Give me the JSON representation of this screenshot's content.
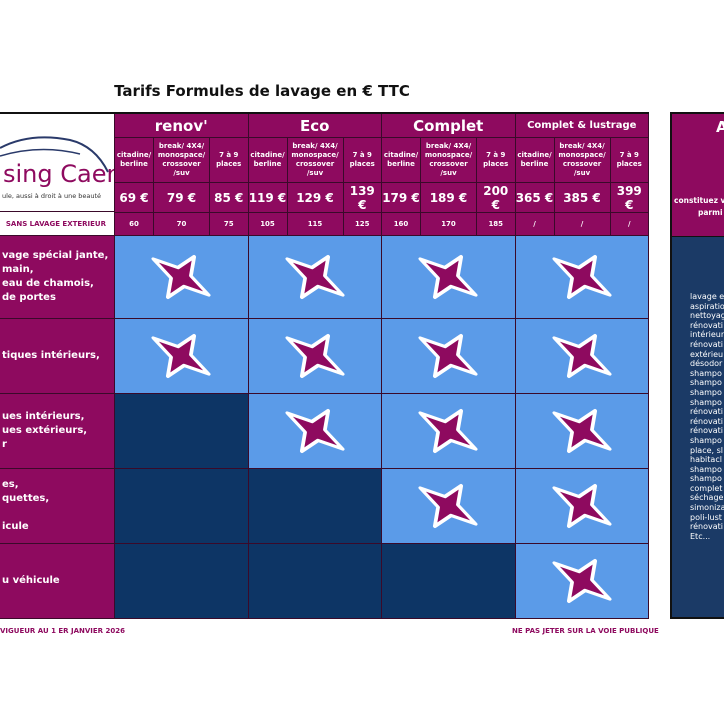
{
  "title": "Tarifs Formules de lavage en € TTC",
  "logo": {
    "name": "sing Caen",
    "tagline": "ule, aussi à droit à une beauté",
    "note": "SANS LAVAGE EXTERIEUR"
  },
  "formulas": [
    {
      "name": "renov'",
      "prices": [
        "69 €",
        "79 €",
        "85 €"
      ],
      "no_ext": [
        "60",
        "70",
        "75"
      ]
    },
    {
      "name": "Eco",
      "prices": [
        "119 €",
        "129 €",
        "139 €"
      ],
      "no_ext": [
        "105",
        "115",
        "125"
      ]
    },
    {
      "name": "Complet",
      "prices": [
        "179 €",
        "189 €",
        "200 €"
      ],
      "no_ext": [
        "160",
        "170",
        "185"
      ]
    },
    {
      "name": "Complet & lustrage",
      "prices": [
        "365 €",
        "385 €",
        "399 €"
      ],
      "no_ext": [
        "/",
        "/",
        "/"
      ]
    }
  ],
  "vehicle_types": [
    [
      "citadine/",
      "berline"
    ],
    [
      "break/ 4X4/",
      "monospace/",
      "crossover /suv"
    ],
    [
      "7 à 9",
      "places"
    ]
  ],
  "rows": [
    {
      "lines": [
        "vage spécial jante,",
        "main,",
        "eau de chamois,",
        "de portes"
      ],
      "included": [
        true,
        true,
        true,
        true
      ]
    },
    {
      "lines": [
        "tiques intérieurs,"
      ],
      "included": [
        true,
        true,
        true,
        true
      ]
    },
    {
      "lines": [
        "ues intérieurs,",
        "ues extérieurs,",
        "r"
      ],
      "included": [
        false,
        true,
        true,
        true
      ]
    },
    {
      "lines": [
        "es,",
        "quettes,",
        "",
        "icule"
      ],
      "included": [
        false,
        false,
        true,
        true
      ]
    },
    {
      "lines": [
        "u véhicule"
      ],
      "included": [
        false,
        false,
        false,
        true
      ]
    }
  ],
  "right_panel": {
    "heading": "A",
    "line1": "constituez v",
    "line2": "parmi",
    "items": [
      "lavage e",
      "aspiratio",
      "nettoyag",
      "rénovati",
      "intérieur",
      "rénovati",
      "extérieu",
      "désodor",
      "shampo",
      "shampo",
      "shampo",
      "shampo",
      "rénovati",
      "rénovati",
      "rénovati",
      "shampo",
      "place, sl",
      "habitacl",
      "shampo",
      "shampo",
      "complet",
      "séchage",
      "simoniza",
      "poli-lust",
      "rénovati",
      "Etc..."
    ]
  },
  "footer": {
    "left": "VIGUEUR AU 1 ER JANVIER 2026",
    "right": "NE PAS JETER SUR LA VOIE PUBLIQUE"
  },
  "colors": {
    "magenta": "#8e0a5f",
    "light_blue": "#5b9be8",
    "navy": "#0d3565"
  }
}
